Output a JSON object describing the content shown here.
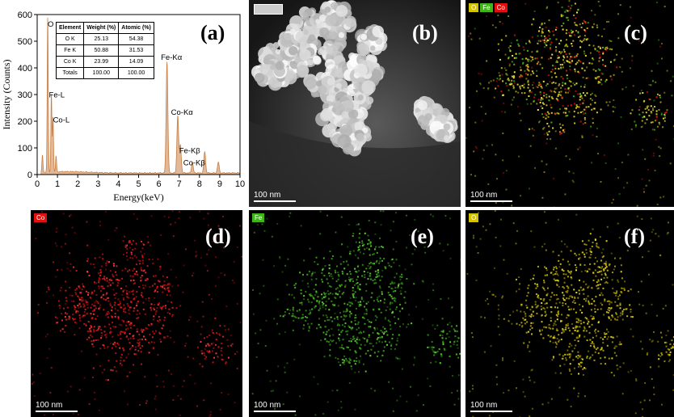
{
  "chart_data": {
    "type": "line",
    "xlabel": "Energy(keV)",
    "ylabel": "Intensity (Counts)",
    "xlim": [
      0,
      10
    ],
    "ylim": [
      0,
      600
    ],
    "xticks": [
      "0",
      "1",
      "2",
      "3",
      "4",
      "5",
      "6",
      "7",
      "8",
      "9",
      "10"
    ],
    "yticks": [
      "0",
      "100",
      "200",
      "300",
      "400",
      "500",
      "600"
    ],
    "peaks": [
      {
        "x": 0.26,
        "y": 65
      },
      {
        "x": 0.52,
        "y": 580
      },
      {
        "x": 0.7,
        "y": 290
      },
      {
        "x": 0.78,
        "y": 205
      },
      {
        "x": 0.93,
        "y": 60
      },
      {
        "x": 6.4,
        "y": 418
      },
      {
        "x": 6.93,
        "y": 215
      },
      {
        "x": 7.06,
        "y": 105
      },
      {
        "x": 7.65,
        "y": 40
      },
      {
        "x": 8.26,
        "y": 80
      },
      {
        "x": 8.93,
        "y": 40
      }
    ],
    "annotations": [
      {
        "text": "O",
        "x": 0.52,
        "y": 555
      },
      {
        "text": "Fe-L",
        "x": 0.58,
        "y": 290
      },
      {
        "text": "Co-L",
        "x": 0.78,
        "y": 195
      },
      {
        "text": "Fe-Kα",
        "x": 6.1,
        "y": 430
      },
      {
        "text": "Co-Kα",
        "x": 6.6,
        "y": 225
      },
      {
        "text": "Fe-Kβ",
        "x": 7.0,
        "y": 80
      },
      {
        "text": "Co-Kβ",
        "x": 7.2,
        "y": 35
      }
    ],
    "table": {
      "headers": [
        "Element",
        "Weight (%)",
        "Atomic (%)"
      ],
      "rows": [
        [
          "O K",
          "25.13",
          "54.38"
        ],
        [
          "Fe K",
          "50.88",
          "31.53"
        ],
        [
          "Co K",
          "23.99",
          "14.09"
        ],
        [
          "Totals",
          "100.00",
          "100.00"
        ]
      ]
    },
    "color": "#c87f45"
  },
  "panels": {
    "a": "(a)",
    "b": "(b)",
    "c": "(c)",
    "d": "(d)",
    "e": "(e)",
    "f": "(f)"
  },
  "scale": "100 nm",
  "chips": {
    "c": [
      {
        "text": "O",
        "color": "#d4c400"
      },
      {
        "text": "Fe",
        "color": "#3fb51a"
      },
      {
        "text": "Co",
        "color": "#e01010"
      }
    ],
    "d": [
      {
        "text": "Co",
        "color": "#e01010"
      }
    ],
    "e": [
      {
        "text": "Fe",
        "color": "#3fb51a"
      }
    ],
    "f": [
      {
        "text": "O",
        "color": "#d4c400"
      }
    ]
  }
}
